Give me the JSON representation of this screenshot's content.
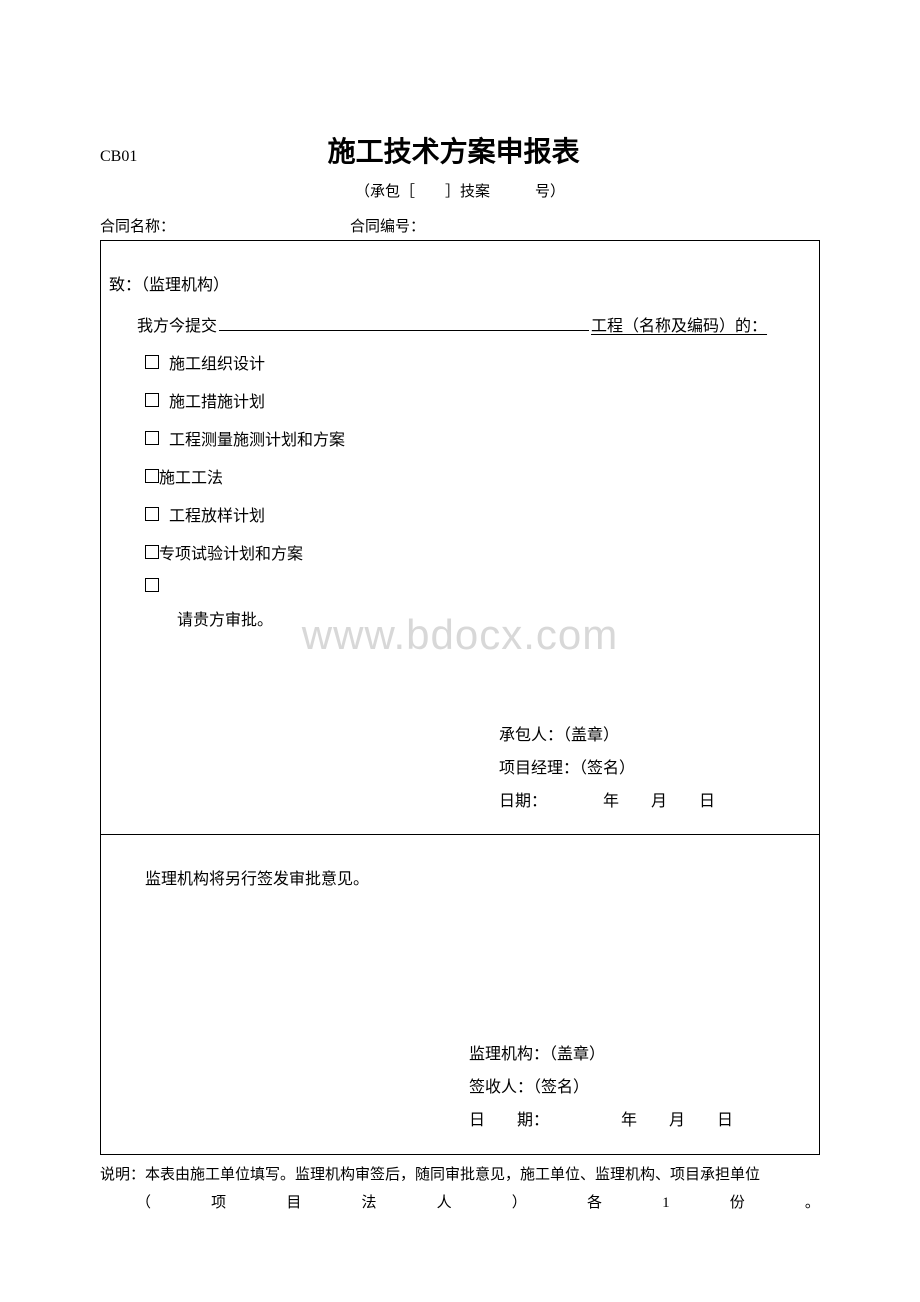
{
  "form_code": "CB01",
  "title": "施工技术方案申报表",
  "subtitle": "（承包［　　］技案　　　号）",
  "contract": {
    "name_label": "合同名称：",
    "no_label": "合同编号："
  },
  "upper": {
    "recipient": "致：（监理机构）",
    "submit_prefix": "我方今提交",
    "submit_suffix": "工程（名称及编码）的：",
    "checkboxes": [
      {
        "label": "施工组织设计",
        "gap": true
      },
      {
        "label": "施工措施计划",
        "gap": true
      },
      {
        "label": "工程测量施测计划和方案",
        "gap": true
      },
      {
        "label": "施工工法",
        "gap": false
      },
      {
        "label": "工程放样计划",
        "gap": true
      },
      {
        "label": "专项试验计划和方案",
        "gap": false
      },
      {
        "label": "",
        "gap": true
      }
    ],
    "approval_request": "请贵方审批。",
    "sig": {
      "contractor": "承包人：（盖章）",
      "pm": "项目经理：（签名）",
      "date": "日期：　　　　年　　月　　日"
    }
  },
  "watermark": "www.bdocx.com",
  "lower": {
    "text": "监理机构将另行签发审批意见。",
    "sig": {
      "org": "监理机构：（盖章）",
      "receiver": "签收人：（签名）",
      "date": "日　　期：　　　　　年　　月　　日"
    }
  },
  "footer": {
    "line1": "说明：本表由施工单位填写。监理机构审签后，随同审批意见，施工单位、监理机构、项目承担单位",
    "line2_chars": [
      "（",
      "项",
      "目",
      "法",
      "人",
      "）",
      "各",
      "1",
      "份",
      "。"
    ]
  },
  "colors": {
    "text": "#000000",
    "background": "#ffffff",
    "watermark": "#d8d8d8",
    "border": "#000000"
  }
}
